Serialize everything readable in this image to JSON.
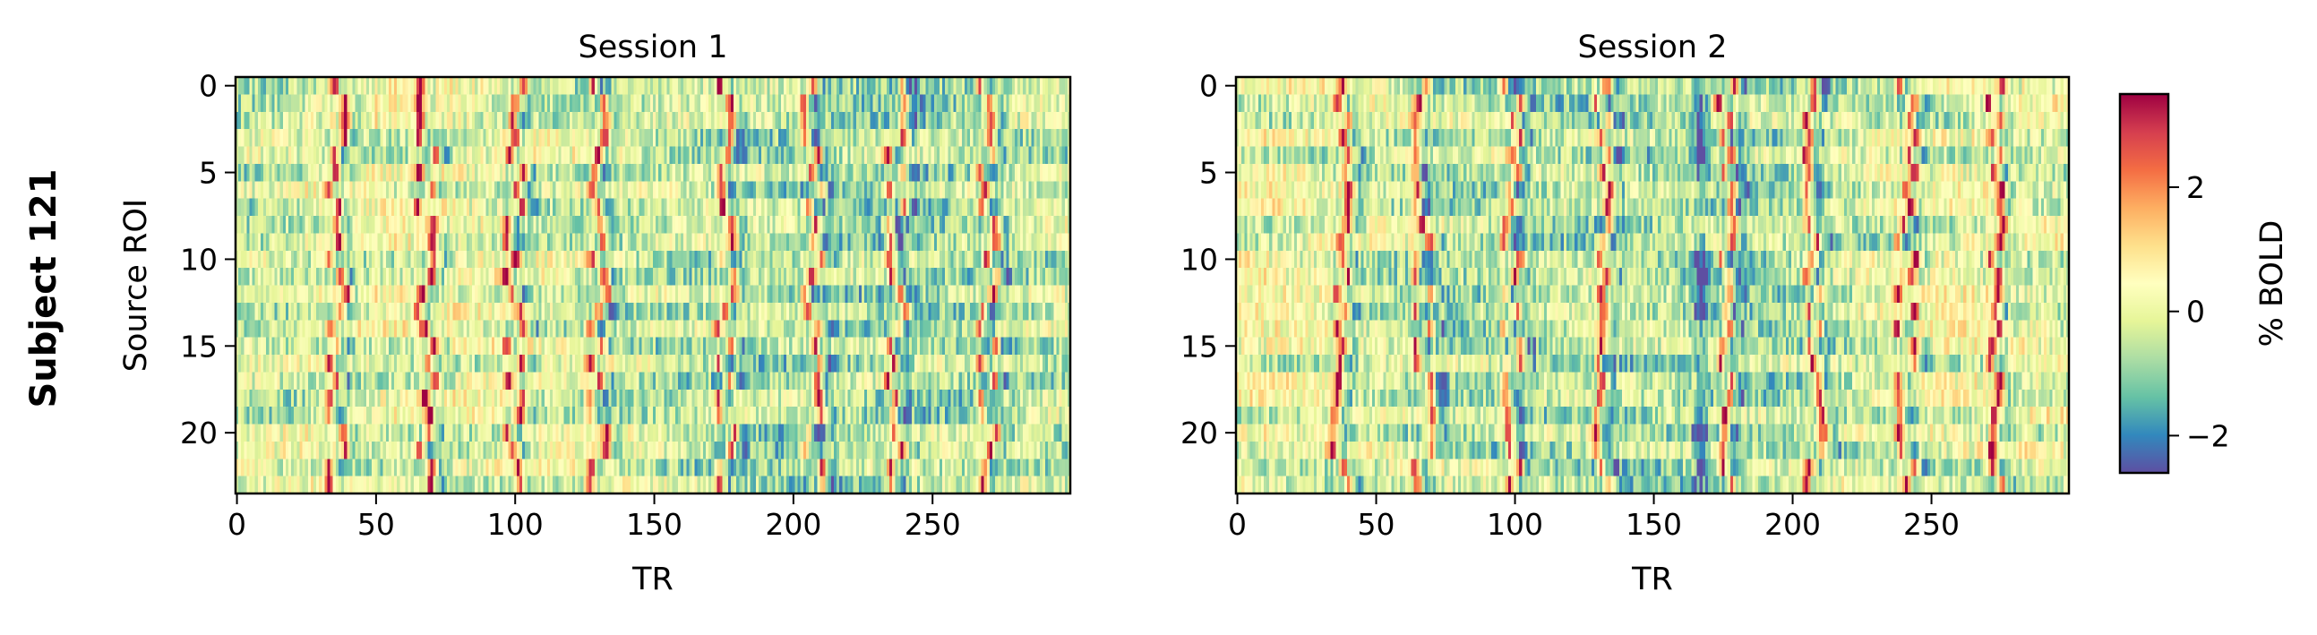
{
  "figure": {
    "row_label": "Subject 121"
  },
  "chart_data": [
    {
      "type": "heatmap",
      "title": "Session 1",
      "xlabel": "TR",
      "ylabel": "Source ROI",
      "n_rows": 24,
      "n_cols": 300,
      "xlim": [
        0,
        299
      ],
      "ylim": [
        23.5,
        -0.5
      ],
      "xticks": [
        0,
        50,
        100,
        150,
        200,
        250
      ],
      "xtick_labels": [
        "0",
        "50",
        "100",
        "150",
        "200",
        "250"
      ],
      "yticks": [
        0,
        5,
        10,
        15,
        20
      ],
      "ytick_labels": [
        "0",
        "5",
        "10",
        "15",
        "20"
      ],
      "colormap": "Spectral_r",
      "grid": false,
      "peak_TRs": [
        36,
        68,
        100,
        130,
        176,
        207,
        237,
        270
      ],
      "peak_amplitude": 3.2,
      "approx_value_range": [
        -2.6,
        3.5
      ]
    },
    {
      "type": "heatmap",
      "title": "Session 2",
      "xlabel": "TR",
      "ylabel": "",
      "n_rows": 24,
      "n_cols": 300,
      "xlim": [
        0,
        299
      ],
      "ylim": [
        23.5,
        -0.5
      ],
      "xticks": [
        0,
        50,
        100,
        150,
        200,
        250
      ],
      "xtick_labels": [
        "0",
        "50",
        "100",
        "150",
        "200",
        "250"
      ],
      "yticks": [
        0,
        5,
        10,
        15,
        20
      ],
      "ytick_labels": [
        "0",
        "5",
        "10",
        "15",
        "20"
      ],
      "colormap": "Spectral_r",
      "grid": false,
      "peak_TRs": [
        37,
        67,
        99,
        131,
        176,
        208,
        241,
        273
      ],
      "peak_amplitude": 3.2,
      "trough_TRs": [
        167
      ],
      "approx_value_range": [
        -2.6,
        3.5
      ]
    }
  ],
  "colorbar": {
    "label": "% BOLD",
    "vmin": -2.6,
    "vmax": 3.5,
    "ticks": [
      -2,
      0,
      2
    ],
    "tick_labels": [
      "−2",
      "0",
      "2"
    ],
    "colormap": "Spectral_r",
    "colors": [
      "#5e4fa2",
      "#3288bd",
      "#66c2a5",
      "#abdda4",
      "#e6f598",
      "#ffffbf",
      "#fee08b",
      "#fdae61",
      "#f46d43",
      "#d53e4f",
      "#9e0142"
    ]
  }
}
